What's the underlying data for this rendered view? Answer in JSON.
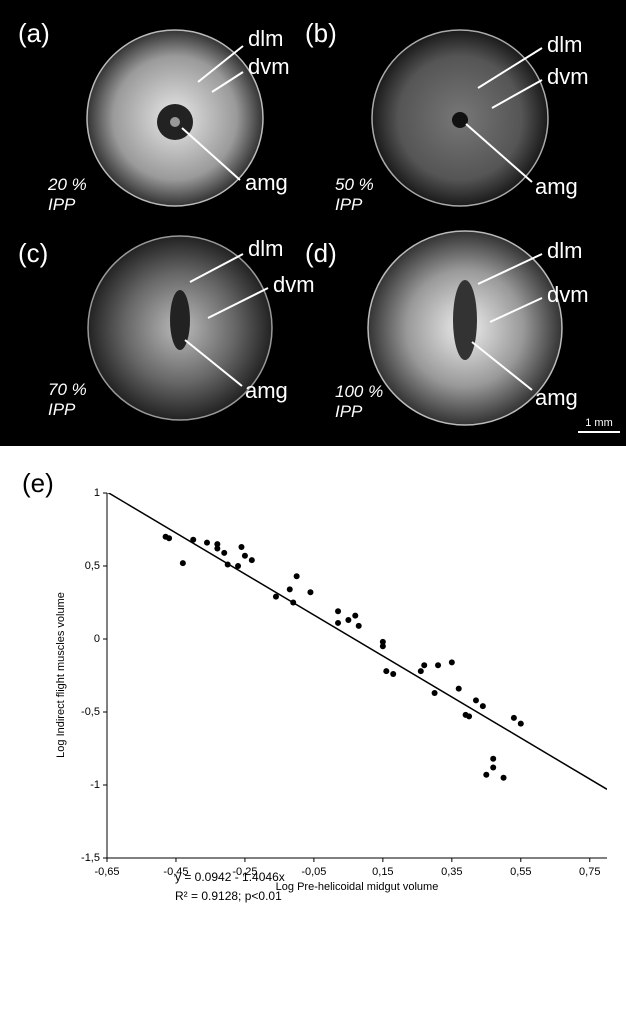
{
  "figure": {
    "panels": [
      {
        "label": "(a)",
        "percent": "20 %",
        "ipp": "IPP",
        "dlm": "dlm",
        "dvm": "dvm",
        "amg": "amg"
      },
      {
        "label": "(b)",
        "percent": "50 %",
        "ipp": "IPP",
        "dlm": "dlm",
        "dvm": "dvm",
        "amg": "amg"
      },
      {
        "label": "(c)",
        "percent": "70 %",
        "ipp": "IPP",
        "dlm": "dlm",
        "dvm": "dvm",
        "amg": "amg"
      },
      {
        "label": "(d)",
        "percent": "100 %",
        "ipp": "IPP",
        "dlm": "dlm",
        "dvm": "dvm",
        "amg": "amg"
      }
    ],
    "scale_bar": "1 mm",
    "chart_label": "(e)"
  },
  "chart_data": {
    "type": "scatter",
    "x_label": "Log Pre-helicoidal midgut volume",
    "y_label": "Log Indirect flight muscles volume",
    "annotations": [
      "y = 0.0942 - 1.4046x",
      "R² = 0.9128; p<0.01"
    ],
    "fit": {
      "intercept": 0.0942,
      "slope": -1.4046
    },
    "color": "#000000",
    "xlim": [
      -0.65,
      0.8
    ],
    "ylim": [
      -1.5,
      1
    ],
    "xticks": [
      {
        "value": -0.65,
        "label": "-0,65"
      },
      {
        "value": -0.45,
        "label": "-0,45"
      },
      {
        "value": -0.25,
        "label": "-0,25"
      },
      {
        "value": -0.05,
        "label": "-0,05"
      },
      {
        "value": 0.15,
        "label": "0,15"
      },
      {
        "value": 0.35,
        "label": "0,35"
      },
      {
        "value": 0.55,
        "label": "0,55"
      },
      {
        "value": 0.75,
        "label": "0,75"
      }
    ],
    "yticks": [
      {
        "value": -1.5,
        "label": "-1,5"
      },
      -1,
      {
        "value": -0.5,
        "label": "-0,5"
      },
      0,
      {
        "value": 0.5,
        "label": "0,5"
      },
      1
    ],
    "x": [
      -0.48,
      -0.47,
      -0.43,
      -0.4,
      -0.36,
      -0.33,
      -0.33,
      -0.31,
      -0.3,
      -0.27,
      -0.26,
      -0.25,
      -0.23,
      -0.16,
      -0.12,
      -0.11,
      -0.1,
      -0.06,
      0.02,
      0.02,
      0.05,
      0.07,
      0.08,
      0.15,
      0.15,
      0.16,
      0.18,
      0.26,
      0.27,
      0.3,
      0.31,
      0.35,
      0.37,
      0.39,
      0.4,
      0.42,
      0.44,
      0.45,
      0.47,
      0.47,
      0.5,
      0.53,
      0.55
    ],
    "values": [
      0.7,
      0.69,
      0.52,
      0.68,
      0.66,
      0.65,
      0.62,
      0.59,
      0.51,
      0.5,
      0.63,
      0.57,
      0.54,
      0.29,
      0.34,
      0.25,
      0.43,
      0.32,
      0.19,
      0.11,
      0.13,
      0.16,
      0.09,
      -0.02,
      -0.05,
      -0.22,
      -0.24,
      -0.22,
      -0.18,
      -0.37,
      -0.18,
      -0.16,
      -0.34,
      -0.52,
      -0.53,
      -0.42,
      -0.46,
      -0.93,
      -0.82,
      -0.88,
      -0.95,
      -0.54,
      -0.58
    ]
  }
}
